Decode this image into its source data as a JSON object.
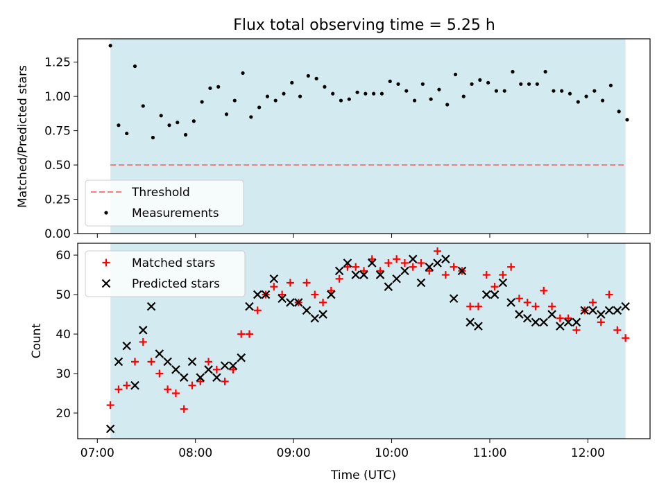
{
  "chart_data": [
    {
      "type": "scatter",
      "title": "Flux total observing time = 5.25 h",
      "xlabel": "",
      "ylabel": "Matched/Predicted stars",
      "ylim": [
        0,
        1.42
      ],
      "yticks": [
        "0.00",
        "0.25",
        "0.50",
        "0.75",
        "1.00",
        "1.25"
      ],
      "shaded_region": {
        "start": "07:08",
        "end": "12:23",
        "color": "#d3eaf0"
      },
      "threshold": {
        "name": "Threshold",
        "value": 0.5,
        "color": "#f08080"
      },
      "series": [
        {
          "name": "Measurements",
          "color": "#000000",
          "points": [
            [
              "07:08",
              1.37
            ],
            [
              "07:13",
              0.79
            ],
            [
              "07:18",
              0.73
            ],
            [
              "07:23",
              1.22
            ],
            [
              "07:28",
              0.93
            ],
            [
              "07:34",
              0.7
            ],
            [
              "07:39",
              0.86
            ],
            [
              "07:44",
              0.79
            ],
            [
              "07:49",
              0.81
            ],
            [
              "07:54",
              0.72
            ],
            [
              "07:59",
              0.82
            ],
            [
              "08:04",
              0.96
            ],
            [
              "08:09",
              1.06
            ],
            [
              "08:14",
              1.07
            ],
            [
              "08:19",
              0.87
            ],
            [
              "08:24",
              0.97
            ],
            [
              "08:29",
              1.17
            ],
            [
              "08:34",
              0.85
            ],
            [
              "08:39",
              0.92
            ],
            [
              "08:44",
              1.0
            ],
            [
              "08:49",
              0.97
            ],
            [
              "08:54",
              1.02
            ],
            [
              "08:59",
              1.1
            ],
            [
              "09:04",
              1.0
            ],
            [
              "09:09",
              1.15
            ],
            [
              "09:14",
              1.13
            ],
            [
              "09:19",
              1.07
            ],
            [
              "09:24",
              1.02
            ],
            [
              "09:29",
              0.97
            ],
            [
              "09:34",
              0.98
            ],
            [
              "09:39",
              1.03
            ],
            [
              "09:44",
              1.02
            ],
            [
              "09:49",
              1.02
            ],
            [
              "09:54",
              1.02
            ],
            [
              "09:59",
              1.11
            ],
            [
              "10:04",
              1.09
            ],
            [
              "10:09",
              1.04
            ],
            [
              "10:14",
              0.97
            ],
            [
              "10:19",
              1.09
            ],
            [
              "10:24",
              0.98
            ],
            [
              "10:29",
              1.05
            ],
            [
              "10:34",
              0.94
            ],
            [
              "10:39",
              1.16
            ],
            [
              "10:44",
              1.0
            ],
            [
              "10:49",
              1.09
            ],
            [
              "10:54",
              1.12
            ],
            [
              "10:59",
              1.1
            ],
            [
              "11:04",
              1.04
            ],
            [
              "11:09",
              1.04
            ],
            [
              "11:14",
              1.18
            ],
            [
              "11:19",
              1.09
            ],
            [
              "11:24",
              1.09
            ],
            [
              "11:29",
              1.09
            ],
            [
              "11:34",
              1.18
            ],
            [
              "11:39",
              1.04
            ],
            [
              "11:44",
              1.04
            ],
            [
              "11:49",
              1.02
            ],
            [
              "11:54",
              0.96
            ],
            [
              "11:59",
              1.0
            ],
            [
              "12:04",
              1.04
            ],
            [
              "12:09",
              0.97
            ],
            [
              "12:14",
              1.08
            ],
            [
              "12:19",
              0.89
            ],
            [
              "12:24",
              0.83
            ]
          ]
        }
      ],
      "legend": {
        "position": "lower-left",
        "entries": [
          "Threshold",
          "Measurements"
        ]
      },
      "grid": false
    },
    {
      "type": "scatter",
      "title": "",
      "xlabel": "Time (UTC)",
      "ylabel": "Count",
      "ylim": [
        13.5,
        63
      ],
      "yticks": [
        "20",
        "30",
        "40",
        "50",
        "60"
      ],
      "xlim": [
        "06:48",
        "12:38"
      ],
      "xticks": [
        "07:00",
        "08:00",
        "09:00",
        "10:00",
        "11:00",
        "12:00"
      ],
      "shaded_region": {
        "start": "07:08",
        "end": "12:23",
        "color": "#d3eaf0"
      },
      "series": [
        {
          "name": "Matched stars",
          "marker": "plus",
          "color": "#ff0000",
          "points": [
            [
              "07:08",
              22
            ],
            [
              "07:13",
              26
            ],
            [
              "07:18",
              27
            ],
            [
              "07:23",
              33
            ],
            [
              "07:28",
              38
            ],
            [
              "07:33",
              33
            ],
            [
              "07:38",
              30
            ],
            [
              "07:43",
              26
            ],
            [
              "07:48",
              25
            ],
            [
              "07:53",
              21
            ],
            [
              "07:58",
              27
            ],
            [
              "08:03",
              28
            ],
            [
              "08:08",
              33
            ],
            [
              "08:13",
              31
            ],
            [
              "08:18",
              28
            ],
            [
              "08:23",
              31
            ],
            [
              "08:28",
              40
            ],
            [
              "08:33",
              40
            ],
            [
              "08:38",
              46
            ],
            [
              "08:43",
              50
            ],
            [
              "08:48",
              52
            ],
            [
              "08:53",
              50
            ],
            [
              "08:58",
              53
            ],
            [
              "09:03",
              48
            ],
            [
              "09:08",
              53
            ],
            [
              "09:13",
              50
            ],
            [
              "09:18",
              48
            ],
            [
              "09:23",
              51
            ],
            [
              "09:28",
              54
            ],
            [
              "09:33",
              57
            ],
            [
              "09:38",
              57
            ],
            [
              "09:43",
              56
            ],
            [
              "09:48",
              59
            ],
            [
              "09:53",
              56
            ],
            [
              "09:58",
              58
            ],
            [
              "10:03",
              59
            ],
            [
              "10:08",
              58
            ],
            [
              "10:13",
              57
            ],
            [
              "10:18",
              58
            ],
            [
              "10:23",
              56
            ],
            [
              "10:28",
              61
            ],
            [
              "10:33",
              55
            ],
            [
              "10:38",
              57
            ],
            [
              "10:43",
              56
            ],
            [
              "10:48",
              47
            ],
            [
              "10:53",
              47
            ],
            [
              "10:58",
              55
            ],
            [
              "11:03",
              52
            ],
            [
              "11:08",
              55
            ],
            [
              "11:13",
              57
            ],
            [
              "11:18",
              49
            ],
            [
              "11:23",
              48
            ],
            [
              "11:28",
              47
            ],
            [
              "11:33",
              51
            ],
            [
              "11:38",
              47
            ],
            [
              "11:43",
              44
            ],
            [
              "11:48",
              44
            ],
            [
              "11:53",
              41
            ],
            [
              "11:58",
              46
            ],
            [
              "12:03",
              48
            ],
            [
              "12:08",
              43
            ],
            [
              "12:13",
              50
            ],
            [
              "12:18",
              41
            ],
            [
              "12:23",
              39
            ]
          ]
        },
        {
          "name": "Predicted stars",
          "marker": "x",
          "color": "#000000",
          "points": [
            [
              "07:08",
              16
            ],
            [
              "07:13",
              33
            ],
            [
              "07:18",
              37
            ],
            [
              "07:23",
              27
            ],
            [
              "07:28",
              41
            ],
            [
              "07:33",
              47
            ],
            [
              "07:38",
              35
            ],
            [
              "07:43",
              33
            ],
            [
              "07:48",
              31
            ],
            [
              "07:53",
              29
            ],
            [
              "07:58",
              33
            ],
            [
              "08:03",
              29
            ],
            [
              "08:08",
              31
            ],
            [
              "08:13",
              29
            ],
            [
              "08:18",
              32
            ],
            [
              "08:23",
              32
            ],
            [
              "08:28",
              34
            ],
            [
              "08:33",
              47
            ],
            [
              "08:38",
              50
            ],
            [
              "08:43",
              50
            ],
            [
              "08:48",
              54
            ],
            [
              "08:53",
              49
            ],
            [
              "08:58",
              48
            ],
            [
              "09:03",
              48
            ],
            [
              "09:08",
              46
            ],
            [
              "09:13",
              44
            ],
            [
              "09:18",
              45
            ],
            [
              "09:23",
              50
            ],
            [
              "09:28",
              56
            ],
            [
              "09:33",
              58
            ],
            [
              "09:38",
              55
            ],
            [
              "09:43",
              55
            ],
            [
              "09:48",
              58
            ],
            [
              "09:53",
              55
            ],
            [
              "09:58",
              52
            ],
            [
              "10:03",
              54
            ],
            [
              "10:08",
              56
            ],
            [
              "10:13",
              59
            ],
            [
              "10:18",
              53
            ],
            [
              "10:23",
              57
            ],
            [
              "10:28",
              58
            ],
            [
              "10:33",
              59
            ],
            [
              "10:38",
              49
            ],
            [
              "10:43",
              56
            ],
            [
              "10:48",
              43
            ],
            [
              "10:53",
              42
            ],
            [
              "10:58",
              50
            ],
            [
              "11:03",
              50
            ],
            [
              "11:08",
              53
            ],
            [
              "11:13",
              48
            ],
            [
              "11:18",
              45
            ],
            [
              "11:23",
              44
            ],
            [
              "11:28",
              43
            ],
            [
              "11:33",
              43
            ],
            [
              "11:38",
              45
            ],
            [
              "11:43",
              42
            ],
            [
              "11:48",
              43
            ],
            [
              "11:53",
              43
            ],
            [
              "11:58",
              46
            ],
            [
              "12:03",
              46
            ],
            [
              "12:08",
              45
            ],
            [
              "12:13",
              46
            ],
            [
              "12:18",
              46
            ],
            [
              "12:23",
              47
            ]
          ]
        }
      ],
      "legend": {
        "position": "upper-left",
        "entries": [
          "Matched stars",
          "Predicted stars"
        ]
      },
      "grid": false
    }
  ]
}
